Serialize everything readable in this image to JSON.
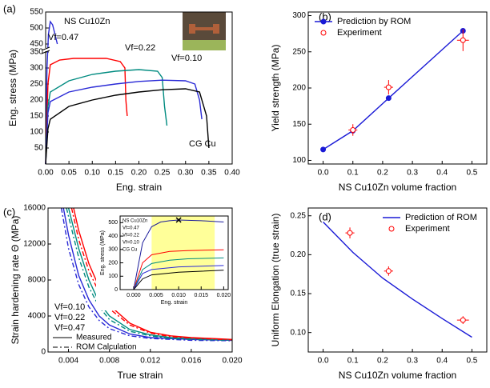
{
  "chart_data": [
    {
      "type": "line",
      "panel_label": "(a)",
      "x_label": "Eng. strain",
      "y_label": "Eng. stress (MPa)",
      "xlim": [
        0,
        0.4
      ],
      "xticks": [
        {
          "value": 0,
          "label": "0.00"
        },
        0.05,
        {
          "value": 0.1,
          "label": "0.10"
        },
        0.15,
        {
          "value": 0.2,
          "label": "0.20"
        },
        0.25,
        {
          "value": 0.3,
          "label": "0.30"
        },
        0.35,
        {
          "value": 0.4,
          "label": "0.40"
        }
      ],
      "ylim": [
        0,
        550
      ],
      "ybreak": [
        350,
        440
      ],
      "yticks": [
        50,
        100,
        150,
        200,
        250,
        300,
        350,
        450,
        500,
        550
      ],
      "series": [
        {
          "name": "NS Cu10Zn",
          "color": "#2a2ad6",
          "x": [
            0,
            0.003,
            0.006,
            0.01,
            0.015,
            0.02,
            0.025
          ],
          "values": [
            0,
            300,
            480,
            520,
            510,
            480,
            450
          ]
        },
        {
          "name": "Vf=0.47",
          "color": "#ff0000",
          "x": [
            0,
            0.005,
            0.01,
            0.03,
            0.06,
            0.1,
            0.13,
            0.16,
            0.17,
            0.172,
            0.175
          ],
          "values": [
            0,
            250,
            310,
            325,
            330,
            330,
            330,
            320,
            300,
            200,
            150
          ]
        },
        {
          "name": "Vf=0.22",
          "color": "#008b80",
          "x": [
            0,
            0.005,
            0.01,
            0.05,
            0.1,
            0.15,
            0.2,
            0.24,
            0.25,
            0.255,
            0.26
          ],
          "values": [
            0,
            180,
            225,
            260,
            280,
            290,
            295,
            290,
            270,
            180,
            120
          ]
        },
        {
          "name": "Vf=0.10",
          "color": "#2a2ad6",
          "x": [
            0,
            0.005,
            0.01,
            0.05,
            0.1,
            0.15,
            0.2,
            0.25,
            0.3,
            0.32,
            0.33,
            0.335
          ],
          "values": [
            0,
            160,
            195,
            225,
            240,
            250,
            258,
            262,
            260,
            250,
            200,
            140
          ]
        },
        {
          "name": "CG Cu",
          "color": "#000000",
          "x": [
            0,
            0.005,
            0.01,
            0.05,
            0.1,
            0.15,
            0.2,
            0.25,
            0.3,
            0.33,
            0.345,
            0.35
          ],
          "values": [
            0,
            110,
            140,
            180,
            200,
            215,
            225,
            232,
            235,
            225,
            150,
            50
          ]
        }
      ]
    },
    {
      "type": "line",
      "panel_label": "(b)",
      "x_label": "NS Cu10Zn volume fraction",
      "y_label": "Yield strength (MPa)",
      "xlim": [
        -0.05,
        0.55
      ],
      "xticks": [
        {
          "value": 0,
          "label": "0.0"
        },
        0.1,
        0.2,
        0.3,
        0.4,
        0.5
      ],
      "ylim": [
        95,
        305
      ],
      "yticks": [
        100,
        150,
        200,
        250,
        300
      ],
      "legend": "upper left",
      "series": [
        {
          "name": "Prediction by ROM",
          "color": "#1a1ad6",
          "marker": "circle",
          "x": [
            0,
            0.1,
            0.22,
            0.47
          ],
          "values": [
            115,
            141,
            186,
            279
          ]
        },
        {
          "name": "Experiment",
          "color": "#ff0000",
          "marker": "open-circle",
          "line": false,
          "x": [
            0.1,
            0.22,
            0.47
          ],
          "values": [
            142,
            201,
            266
          ],
          "yerr": [
            8,
            10,
            15
          ],
          "xerr": [
            0.015,
            0.015,
            0.02
          ]
        }
      ]
    },
    {
      "type": "line",
      "panel_label": "(c)",
      "x_label": "True strain",
      "y_label": "Strain hardening rate Θ (MPa)",
      "xlim": [
        0.002,
        0.02
      ],
      "xticks": [
        0.004,
        0.008,
        0.012,
        0.016,
        {
          "value": 0.02,
          "label": "0.020"
        }
      ],
      "ylim": [
        0,
        16000
      ],
      "yticks": [
        0,
        4000,
        8000,
        12000,
        16000
      ],
      "line_legend": [
        {
          "name": "Measured",
          "dash": false
        },
        {
          "name": "ROM Calculation",
          "dash": true
        }
      ],
      "series": [
        {
          "name": "Vf=0.10",
          "color": "#2a2ad6",
          "x": [
            0.0035,
            0.004,
            0.005,
            0.006,
            0.007,
            0.008,
            0.01,
            0.012,
            0.016,
            0.02
          ],
          "values": [
            16000,
            13000,
            8500,
            5800,
            4000,
            3000,
            2000,
            1600,
            1400,
            1300
          ]
        },
        {
          "name": "Vf=0.22",
          "color": "#008b80",
          "x": [
            0.004,
            0.005,
            0.006,
            0.007,
            0.008,
            0.01,
            0.012,
            0.014,
            0.016,
            0.018,
            0.02
          ],
          "values": [
            16000,
            11500,
            8000,
            5500,
            4000,
            2500,
            1900,
            1600,
            1500,
            1400,
            1350
          ]
        },
        {
          "name": "Vf=0.47",
          "color": "#ff0000",
          "x": [
            0.0045,
            0.005,
            0.006,
            0.007,
            0.008,
            0.01,
            0.012,
            0.014,
            0.016,
            0.018,
            0.02
          ],
          "values": [
            16000,
            13500,
            9800,
            7200,
            5200,
            3200,
            2200,
            1800,
            1600,
            1500,
            1400
          ]
        },
        {
          "color": "#2a2ad6",
          "dash": true,
          "x": [
            0.0033,
            0.004,
            0.005,
            0.006,
            0.007,
            0.008,
            0.01,
            0.012,
            0.016,
            0.02
          ],
          "values": [
            16000,
            11500,
            7500,
            5000,
            3500,
            2600,
            1800,
            1500,
            1300,
            1250
          ]
        },
        {
          "color": "#008b80",
          "dash": true,
          "x": [
            0.0038,
            0.005,
            0.006,
            0.007,
            0.008,
            0.01,
            0.012,
            0.014,
            0.016,
            0.018,
            0.02
          ],
          "values": [
            16000,
            10500,
            7200,
            5000,
            3600,
            2300,
            1800,
            1500,
            1400,
            1350,
            1300
          ]
        },
        {
          "color": "#ff0000",
          "dash": true,
          "x": [
            0.0043,
            0.005,
            0.006,
            0.007,
            0.008,
            0.01,
            0.012,
            0.014,
            0.016,
            0.018,
            0.02
          ],
          "values": [
            16000,
            12500,
            9000,
            6600,
            4800,
            3000,
            2100,
            1700,
            1550,
            1450,
            1350
          ]
        }
      ]
    },
    {
      "type": "line",
      "panel_label": "(d)",
      "x_label": "NS Cu10Zn volume fraction",
      "y_label": "Uniform Elongation (true strain)",
      "xlim": [
        -0.05,
        0.55
      ],
      "xticks": [
        {
          "value": 0,
          "label": "0.0"
        },
        0.1,
        0.2,
        0.3,
        0.4,
        0.5
      ],
      "ylim": [
        0.075,
        0.26
      ],
      "yticks": [
        {
          "value": 0.1,
          "label": "0.10"
        },
        0.15,
        {
          "value": 0.2,
          "label": "0.20"
        },
        0.25
      ],
      "legend": "upper right",
      "series": [
        {
          "name": "Prediction of ROM",
          "color": "#1a1ad6",
          "x": [
            0,
            0.1,
            0.2,
            0.3,
            0.4,
            0.5
          ],
          "values": [
            0.242,
            0.203,
            0.17,
            0.143,
            0.118,
            0.094
          ]
        },
        {
          "name": "Experiment",
          "color": "#ff0000",
          "marker": "open-circle",
          "line": false,
          "x": [
            0.09,
            0.22,
            0.47
          ],
          "values": [
            0.228,
            0.179,
            0.116
          ],
          "yerr": [
            0.007,
            0.006,
            0.005
          ],
          "xerr": [
            0.015,
            0.015,
            0.02
          ]
        }
      ]
    },
    {
      "type": "line",
      "x_label": "Eng. strain",
      "y_label": "Eng. stress (MPa)",
      "xlim": [
        -0.003,
        0.021
      ],
      "xticks": [
        {
          "value": 0,
          "label": "0.000"
        },
        0.005,
        {
          "value": 0.01,
          "label": "0.010"
        },
        0.015,
        {
          "value": 0.02,
          "label": "0.020"
        }
      ],
      "ylim": [
        0,
        550
      ],
      "yticks": [
        0,
        100,
        200,
        300,
        400,
        500
      ],
      "highlight": {
        "x": [
          0.004,
          0.018
        ],
        "color": "#ffff99"
      },
      "marker_point": {
        "x": 0.01,
        "y": 520
      },
      "series": [
        {
          "name": "NS Cu10Zn",
          "color": "#1a1a9a",
          "x": [
            0,
            0.002,
            0.004,
            0.006,
            0.008,
            0.01,
            0.015,
            0.02
          ],
          "values": [
            0,
            350,
            470,
            505,
            515,
            520,
            515,
            505
          ]
        },
        {
          "name": "Vf=0.47",
          "color": "#ff0000",
          "x": [
            0,
            0.002,
            0.004,
            0.008,
            0.012,
            0.02
          ],
          "values": [
            0,
            200,
            260,
            285,
            292,
            298
          ]
        },
        {
          "name": "Vf=0.22",
          "color": "#008b80",
          "x": [
            0,
            0.002,
            0.004,
            0.008,
            0.012,
            0.02
          ],
          "values": [
            0,
            150,
            195,
            220,
            230,
            237
          ]
        },
        {
          "name": "Vf=0.10",
          "color": "#2a2ad6",
          "x": [
            0,
            0.002,
            0.004,
            0.01,
            0.02
          ],
          "values": [
            0,
            120,
            150,
            170,
            180
          ]
        },
        {
          "name": "CG Cu",
          "color": "#000000",
          "x": [
            0,
            0.002,
            0.004,
            0.01,
            0.02
          ],
          "values": [
            0,
            80,
            110,
            130,
            145
          ]
        }
      ]
    }
  ]
}
